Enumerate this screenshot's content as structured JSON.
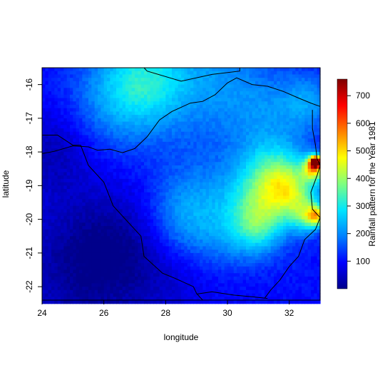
{
  "chart_data": {
    "type": "heatmap",
    "title": "",
    "xlabel": "longitude",
    "ylabel": "latitude",
    "xlim": [
      24,
      33
    ],
    "ylim": [
      -22.4,
      -15.5
    ],
    "x_ticks": [
      24,
      26,
      28,
      30,
      32
    ],
    "x_tick_labels": [
      "24",
      "26",
      "28",
      "30",
      "32"
    ],
    "y_ticks": [
      -16,
      -17,
      -18,
      -19,
      -20,
      -21,
      -22
    ],
    "y_tick_labels": [
      "-16",
      "-17",
      "-18",
      "-19",
      "-20",
      "-21",
      "-22"
    ],
    "colorbar": {
      "label": "Rainfall pattern for the Year 1981",
      "range": [
        0,
        760
      ],
      "ticks": [
        100,
        200,
        300,
        400,
        500,
        600,
        700
      ],
      "tick_labels": [
        "100",
        "200",
        "300",
        "400",
        "500",
        "600",
        "700"
      ],
      "colors": [
        "#00008b",
        "#0000ff",
        "#0080ff",
        "#00e5ff",
        "#7fff7f",
        "#ffff00",
        "#ff8000",
        "#ff0000",
        "#7f0000"
      ]
    },
    "background_value": 100,
    "features": [
      {
        "lon": 26.6,
        "lat": -16.3,
        "value": 230,
        "spread": 1.1
      },
      {
        "lon": 27.5,
        "lat": -15.8,
        "value": 210,
        "spread": 0.9
      },
      {
        "lon": 29.5,
        "lat": -15.9,
        "value": 200,
        "spread": 1.2
      },
      {
        "lon": 31.3,
        "lat": -16.8,
        "value": 170,
        "spread": 0.9
      },
      {
        "lon": 32.6,
        "lat": -16.5,
        "value": 200,
        "spread": 0.6
      },
      {
        "lon": 24.3,
        "lat": -18.0,
        "value": 40,
        "spread": 0.9
      },
      {
        "lon": 25.2,
        "lat": -21.5,
        "value": 20,
        "spread": 1.6
      },
      {
        "lon": 26.5,
        "lat": -20.8,
        "value": 45,
        "spread": 1.1
      },
      {
        "lon": 28.2,
        "lat": -21.8,
        "value": 70,
        "spread": 1.0
      },
      {
        "lon": 31.5,
        "lat": -18.8,
        "value": 320,
        "spread": 0.8
      },
      {
        "lon": 32.1,
        "lat": -19.2,
        "value": 280,
        "spread": 0.6
      },
      {
        "lon": 31.0,
        "lat": -19.7,
        "value": 210,
        "spread": 0.7
      },
      {
        "lon": 29.2,
        "lat": -19.4,
        "value": 180,
        "spread": 1.1
      },
      {
        "lon": 28.5,
        "lat": -20.1,
        "value": 170,
        "spread": 0.8
      },
      {
        "lon": 30.2,
        "lat": -20.5,
        "value": 170,
        "spread": 0.8
      },
      {
        "lon": 31.0,
        "lat": -20.3,
        "value": 200,
        "spread": 0.5
      },
      {
        "lon": 32.6,
        "lat": -19.9,
        "value": 290,
        "spread": 0.35
      },
      {
        "lon": 32.85,
        "lat": -18.3,
        "value": 720,
        "spread": 0.12
      },
      {
        "lon": 32.8,
        "lat": -18.5,
        "value": 420,
        "spread": 0.25
      },
      {
        "lon": 32.9,
        "lat": -19.9,
        "value": 360,
        "spread": 0.2
      },
      {
        "lon": 31.8,
        "lat": -21.2,
        "value": 110,
        "spread": 0.7
      },
      {
        "lon": 30.5,
        "lat": -21.8,
        "value": 90,
        "spread": 0.8
      }
    ],
    "borders": [
      {
        "name": "zimbabwe-border",
        "points": [
          [
            24.0,
            -18.05
          ],
          [
            24.4,
            -17.98
          ],
          [
            25.0,
            -17.82
          ],
          [
            25.5,
            -17.85
          ],
          [
            25.8,
            -17.95
          ],
          [
            26.2,
            -17.92
          ],
          [
            26.6,
            -18.02
          ],
          [
            27.0,
            -17.9
          ],
          [
            27.4,
            -17.55
          ],
          [
            27.8,
            -17.05
          ],
          [
            28.2,
            -16.8
          ],
          [
            28.8,
            -16.55
          ],
          [
            29.2,
            -16.5
          ],
          [
            29.6,
            -16.3
          ],
          [
            30.0,
            -15.95
          ],
          [
            30.3,
            -15.8
          ],
          [
            30.8,
            -16.0
          ],
          [
            31.3,
            -16.05
          ],
          [
            31.8,
            -16.2
          ],
          [
            32.3,
            -16.4
          ],
          [
            32.7,
            -16.55
          ],
          [
            33.0,
            -16.65
          ]
        ]
      },
      {
        "name": "zimbabwe-east-border",
        "points": [
          [
            32.75,
            -16.75
          ],
          [
            32.75,
            -17.3
          ],
          [
            32.85,
            -17.8
          ],
          [
            32.9,
            -18.2
          ],
          [
            33.0,
            -18.4
          ],
          [
            32.9,
            -18.7
          ],
          [
            32.7,
            -19.2
          ],
          [
            32.75,
            -19.7
          ],
          [
            33.0,
            -19.95
          ],
          [
            32.85,
            -20.3
          ],
          [
            32.5,
            -20.6
          ],
          [
            32.3,
            -21.1
          ],
          [
            32.0,
            -21.4
          ],
          [
            31.7,
            -21.8
          ],
          [
            31.4,
            -22.1
          ],
          [
            31.2,
            -22.35
          ]
        ]
      },
      {
        "name": "zimbabwe-south-border",
        "points": [
          [
            31.3,
            -22.35
          ],
          [
            30.8,
            -22.3
          ],
          [
            30.2,
            -22.25
          ],
          [
            29.5,
            -22.15
          ],
          [
            29.0,
            -22.22
          ]
        ]
      },
      {
        "name": "botswana-border",
        "points": [
          [
            25.25,
            -17.8
          ],
          [
            25.5,
            -18.4
          ],
          [
            26.0,
            -18.9
          ],
          [
            26.3,
            -19.6
          ],
          [
            26.8,
            -20.1
          ],
          [
            27.2,
            -20.5
          ],
          [
            27.3,
            -21.1
          ],
          [
            27.9,
            -21.6
          ],
          [
            28.3,
            -21.75
          ],
          [
            28.9,
            -22.0
          ],
          [
            29.0,
            -22.2
          ],
          [
            29.2,
            -22.4
          ]
        ]
      },
      {
        "name": "namibia-border",
        "points": [
          [
            24.0,
            -17.5
          ],
          [
            24.5,
            -17.5
          ],
          [
            25.0,
            -17.8
          ],
          [
            25.25,
            -17.8
          ]
        ]
      },
      {
        "name": "northern-border",
        "points": [
          [
            27.3,
            -15.5
          ],
          [
            27.4,
            -15.6
          ],
          [
            28.5,
            -15.9
          ],
          [
            29.5,
            -15.7
          ],
          [
            30.4,
            -15.6
          ],
          [
            30.4,
            -15.5
          ]
        ]
      }
    ]
  }
}
